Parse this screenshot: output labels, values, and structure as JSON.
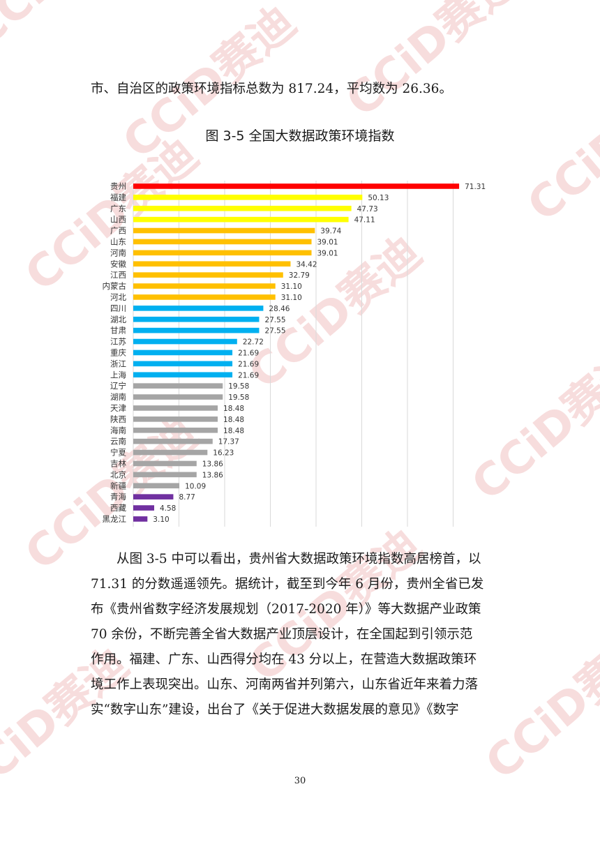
{
  "intro_line": "市、自治区的政策环境指标总数为 817.24，平均数为 26.36。",
  "figure_title": "图 3-5   全国大数据政策环境指数",
  "chart_data": {
    "type": "bar",
    "orientation": "horizontal",
    "title": "",
    "xlabel": "",
    "ylabel": "",
    "xlim": [
      0,
      80
    ],
    "grid": true,
    "legend": "none",
    "categories": [
      "贵州",
      "福建",
      "广东",
      "山西",
      "广西",
      "山东",
      "河南",
      "安徽",
      "江西",
      "内蒙古",
      "河北",
      "四川",
      "湖北",
      "甘肃",
      "江苏",
      "重庆",
      "浙江",
      "上海",
      "辽宁",
      "湖南",
      "天津",
      "陕西",
      "海南",
      "云南",
      "宁夏",
      "吉林",
      "北京",
      "新疆",
      "青海",
      "西藏",
      "黑龙江"
    ],
    "values": [
      71.31,
      50.13,
      47.73,
      47.11,
      39.74,
      39.01,
      39.01,
      34.42,
      32.79,
      31.1,
      31.1,
      28.46,
      27.55,
      27.55,
      22.72,
      21.69,
      21.69,
      21.69,
      19.58,
      19.58,
      18.48,
      18.48,
      18.48,
      17.37,
      16.23,
      13.86,
      13.86,
      10.09,
      8.77,
      4.58,
      3.1
    ],
    "labels": [
      "71.31",
      "50.13",
      "47.73",
      "47.11",
      "39.74",
      "39.01",
      "39.01",
      "34.42",
      "32.79",
      "31.10",
      "31.10",
      "28.46",
      "27.55",
      "27.55",
      "22.72",
      "21.69",
      "21.69",
      "21.69",
      "19.58",
      "19.58",
      "18.48",
      "18.48",
      "18.48",
      "17.37",
      "16.23",
      "13.86",
      "13.86",
      "10.09",
      "8.77",
      "4.58",
      "3.10"
    ],
    "colors": [
      "#ff0000",
      "#ffff00",
      "#ffff00",
      "#ffff00",
      "#ffc000",
      "#ffc000",
      "#ffc000",
      "#ffc000",
      "#ffc000",
      "#ffc000",
      "#ffc000",
      "#00b0f0",
      "#00b0f0",
      "#00b0f0",
      "#00b0f0",
      "#00b0f0",
      "#00b0f0",
      "#00b0f0",
      "#a5a5a5",
      "#a5a5a5",
      "#a5a5a5",
      "#a5a5a5",
      "#a5a5a5",
      "#a5a5a5",
      "#a5a5a5",
      "#a5a5a5",
      "#a5a5a5",
      "#a5a5a5",
      "#7030a0",
      "#7030a0",
      "#7030a0"
    ]
  },
  "body_lines": [
    "从图 3-5 中可以看出，贵州省大数据政策环境指数高居榜首，以",
    "71.31 的分数遥遥领先。据统计，截至到今年 6 月份，贵州全省已发",
    "布《贵州省数字经济发展规划（2017-2020 年）》等大数据产业政策",
    "70 余份，不断完善全省大数据产业顶层设计，在全国起到引领示范",
    "作用。福建、广东、山西得分均在 43 分以上，在营造大数据政策环",
    "境工作上表现突出。山东、河南两省并列第六，山东省近年来着力落",
    "实“数字山东”建设，出台了《关于促进大数据发展的意见》《数字"
  ],
  "page_number": "30",
  "watermark": {
    "text": "CCiD赛迪",
    "color": "#f2c2c2"
  }
}
